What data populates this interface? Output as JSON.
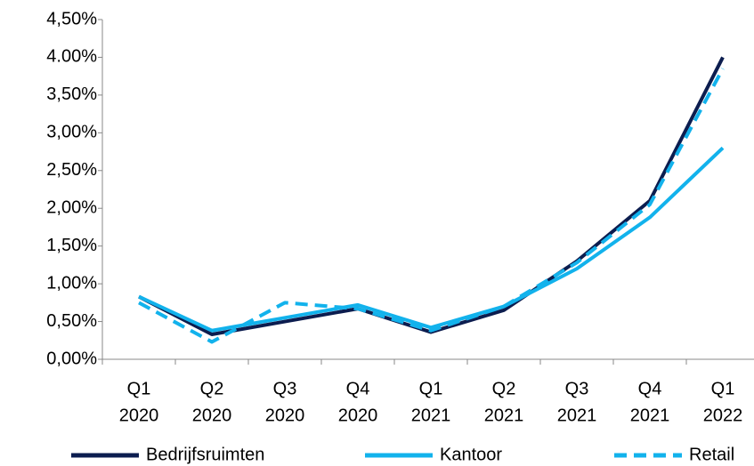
{
  "chart_data": {
    "type": "line",
    "categories": [
      [
        "Q1",
        "2020"
      ],
      [
        "Q2",
        "2020"
      ],
      [
        "Q3",
        "2020"
      ],
      [
        "Q4",
        "2020"
      ],
      [
        "Q1",
        "2021"
      ],
      [
        "Q2",
        "2021"
      ],
      [
        "Q3",
        "2021"
      ],
      [
        "Q4",
        "2021"
      ],
      [
        "Q1",
        "2022"
      ]
    ],
    "series": [
      {
        "name": "Bedrijfsruimten",
        "color": "#0c1d4f",
        "dash": false,
        "values": [
          0.83,
          0.33,
          0.5,
          0.67,
          0.36,
          0.65,
          1.3,
          2.1,
          4.0
        ]
      },
      {
        "name": "Kantoor",
        "color": "#12b2ec",
        "dash": false,
        "values": [
          0.83,
          0.38,
          0.55,
          0.72,
          0.42,
          0.7,
          1.2,
          1.88,
          2.8
        ]
      },
      {
        "name": "Retail",
        "color": "#12b2ec",
        "dash": true,
        "values": [
          0.75,
          0.23,
          0.75,
          0.67,
          0.38,
          0.7,
          1.28,
          2.05,
          3.85
        ]
      }
    ],
    "ylim": [
      0,
      4.5
    ],
    "yticks": [
      {
        "value": 0,
        "label": "0,00%"
      },
      {
        "value": 0.5,
        "label": "0,50%"
      },
      {
        "value": 1,
        "label": "1,00%"
      },
      {
        "value": 1.5,
        "label": "1,50%"
      },
      {
        "value": 2,
        "label": "2,00%"
      },
      {
        "value": 2.5,
        "label": "2,50%"
      },
      {
        "value": 3,
        "label": "3,00%"
      },
      {
        "value": 3.5,
        "label": "3,50%"
      },
      {
        "value": 4,
        "label": "4.00%"
      },
      {
        "value": 4.5,
        "label": "4,50%"
      }
    ],
    "legend": "bottom"
  }
}
